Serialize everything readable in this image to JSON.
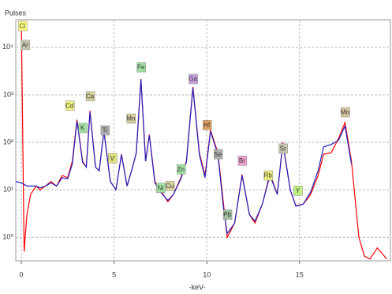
{
  "chart_data": {
    "type": "line",
    "ylabel": "Pulses",
    "xlabel": "-keV-",
    "log_y": true,
    "grid": true,
    "xlim": [
      -0.3,
      19.9
    ],
    "ylim": [
      0.32,
      38000
    ],
    "xticks": [
      0,
      5,
      10,
      15
    ],
    "yticks": [
      {
        "value": 1,
        "label": "10⁰"
      },
      {
        "value": 10,
        "label": "10¹"
      },
      {
        "value": 100,
        "label": "10²"
      },
      {
        "value": 1000,
        "label": "10³"
      },
      {
        "value": 10000,
        "label": "10⁴"
      }
    ],
    "x": [
      -0.3,
      0,
      0.15,
      0.3,
      0.5,
      0.8,
      1.0,
      1.3,
      1.6,
      1.9,
      2.2,
      2.5,
      2.75,
      3.0,
      3.3,
      3.5,
      3.7,
      4.0,
      4.2,
      4.45,
      4.8,
      5.1,
      5.4,
      5.7,
      6.0,
      6.2,
      6.45,
      6.7,
      6.9,
      7.2,
      7.5,
      7.9,
      8.2,
      8.6,
      8.9,
      9.25,
      9.6,
      9.9,
      10.2,
      10.6,
      10.9,
      11.1,
      11.5,
      11.9,
      12.3,
      12.6,
      13.0,
      13.4,
      13.8,
      14.1,
      14.5,
      14.8,
      15.2,
      15.6,
      16.0,
      16.3,
      16.7,
      17.1,
      17.45,
      17.8,
      18.2,
      18.5,
      18.8,
      19.2,
      19.7
    ],
    "series": [
      {
        "color": "#ff0000",
        "values": [
          null,
          30000,
          0.5,
          3,
          8,
          12,
          10,
          12,
          15,
          12,
          20,
          18,
          40,
          300,
          40,
          30,
          460,
          30,
          25,
          177,
          15,
          10,
          56,
          12,
          30,
          60,
          2150,
          40,
          146,
          15,
          10,
          5.6,
          8,
          18,
          40,
          1470,
          60,
          20,
          180,
          60,
          5,
          1,
          2,
          21,
          3,
          2,
          5,
          22,
          8,
          100,
          10,
          4.6,
          5,
          8,
          20,
          56,
          60,
          120,
          260,
          40,
          1,
          0.4,
          0.35,
          0.6,
          0.35
        ]
      },
      {
        "color": "#2020c0",
        "values": [
          15,
          14,
          13,
          12,
          12,
          12,
          11,
          12,
          14,
          12,
          18,
          17,
          35,
          280,
          38,
          30,
          430,
          30,
          25,
          170,
          15,
          10,
          55,
          12,
          30,
          60,
          2100,
          40,
          140,
          14,
          9,
          6,
          8,
          17,
          38,
          1400,
          55,
          18,
          170,
          55,
          4,
          1.2,
          2,
          20,
          3,
          2.2,
          5,
          20,
          8,
          95,
          10,
          4.5,
          5,
          9,
          25,
          80,
          90,
          110,
          220,
          35,
          null,
          null,
          null,
          null,
          null
        ]
      }
    ],
    "annotations": [
      {
        "text": "Cl",
        "x": 0.05,
        "y": 28000,
        "color": "#ffff80"
      },
      {
        "text": "Ar",
        "x": 0.2,
        "y": 11200,
        "color": "#c8c8b0"
      },
      {
        "text": "Cd",
        "x": 2.6,
        "y": 590,
        "color": "#f0f080"
      },
      {
        "text": "K",
        "x": 3.3,
        "y": 200,
        "color": "#a0e0a0"
      },
      {
        "text": "Ca",
        "x": 3.7,
        "y": 930,
        "color": "#d8d0a0"
      },
      {
        "text": "Ti",
        "x": 4.5,
        "y": 178,
        "color": "#b0b0b0"
      },
      {
        "text": "V",
        "x": 4.9,
        "y": 46,
        "color": "#e0e080"
      },
      {
        "text": "Mn",
        "x": 5.9,
        "y": 316,
        "color": "#d8d0a0"
      },
      {
        "text": "Fe",
        "x": 6.45,
        "y": 3800,
        "color": "#a0e0a0"
      },
      {
        "text": "Ni",
        "x": 7.5,
        "y": 11,
        "color": "#a0e0a0"
      },
      {
        "text": "Cu",
        "x": 8.0,
        "y": 12,
        "color": "#d8d0a0"
      },
      {
        "text": "Zn",
        "x": 8.6,
        "y": 27,
        "color": "#a0e0a0"
      },
      {
        "text": "Ga",
        "x": 9.25,
        "y": 2150,
        "color": "#c8a0e0"
      },
      {
        "text": "Hf",
        "x": 10.0,
        "y": 230,
        "color": "#e0a060"
      },
      {
        "text": "Se",
        "x": 10.6,
        "y": 56,
        "color": "#b0b0b0"
      },
      {
        "text": "Pb",
        "x": 11.1,
        "y": 3,
        "color": "#a0c0a0"
      },
      {
        "text": "Br",
        "x": 11.9,
        "y": 41,
        "color": "#f0a0d0"
      },
      {
        "text": "Rb",
        "x": 13.3,
        "y": 20,
        "color": "#f0f080"
      },
      {
        "text": "Sr",
        "x": 14.1,
        "y": 74,
        "color": "#c8c8b0"
      },
      {
        "text": "Y",
        "x": 14.9,
        "y": 9.6,
        "color": "#c0f080"
      },
      {
        "text": "Mo",
        "x": 17.45,
        "y": 430,
        "color": "#d8c8a0"
      }
    ]
  }
}
